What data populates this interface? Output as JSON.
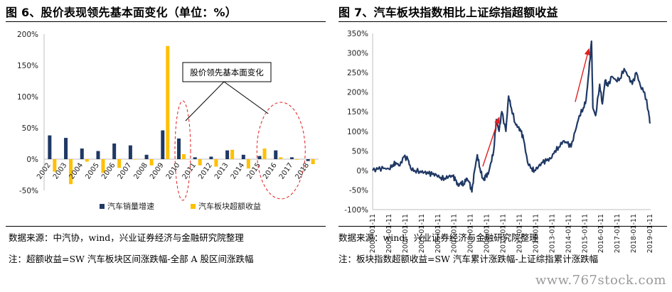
{
  "left": {
    "title": "图 6、股价表现领先基本面变化（单位：%）",
    "source": "数据来源：中汽协，wind，兴业证券经济与金融研究院整理",
    "note": "注：超额收益=SW 汽车板块区间涨跌幅-全部 A 股区间涨跌幅"
  },
  "right": {
    "title": "图 7、汽车板块指数相比上证综指超额收益",
    "source": "数据来源：wind，兴业证券经济与金融研究院整理",
    "note": "注：板块指数超额收益=SW 汽车累计涨跌幅-上证综指累计涨跌幅"
  },
  "watermark": "www.767stock.com",
  "colors": {
    "navy": "#1f3864",
    "gold": "#ffc000",
    "line": "#1f3864",
    "red": "#e02020",
    "axis": "#bfbfbf"
  },
  "chart_data": [
    {
      "type": "bar",
      "title": "",
      "categories": [
        "2002",
        "2003",
        "2004",
        "2005",
        "2006",
        "2007",
        "2008",
        "2009",
        "2010",
        "2011",
        "2012",
        "2013",
        "2014",
        "2015",
        "2016",
        "2017",
        "2018"
      ],
      "series": [
        {
          "name": "汽车销量增速",
          "color": "#1f3864",
          "values": [
            38,
            34,
            17,
            13,
            25,
            22,
            7,
            46,
            33,
            3,
            4,
            14,
            7,
            5,
            14,
            3,
            -3
          ]
        },
        {
          "name": "汽车板块超额收益",
          "color": "#ffc000",
          "values": [
            -20,
            -40,
            -4,
            -22,
            -14,
            0,
            -10,
            181,
            8,
            -10,
            -12,
            15,
            -15,
            17,
            3,
            -1,
            -8
          ]
        }
      ],
      "ylim": [
        -50,
        200
      ],
      "yticks": [
        "-50%",
        "0%",
        "50%",
        "100%",
        "150%",
        "200%"
      ],
      "ytick_values": [
        -50,
        0,
        50,
        100,
        150,
        200
      ],
      "annotation": "股价领先基本面变化",
      "legend_position": "bottom"
    },
    {
      "type": "line",
      "title": "",
      "ylim": [
        -100,
        350
      ],
      "yticks": [
        "-100%",
        "-50%",
        "0%",
        "50%",
        "100%",
        "150%",
        "200%",
        "250%",
        "300%",
        "350%"
      ],
      "ytick_values": [
        -100,
        -50,
        0,
        50,
        100,
        150,
        200,
        250,
        300,
        350
      ],
      "xticks": [
        "2002-01-11",
        "2003-01-11",
        "2004-01-11",
        "2005-01-11",
        "2006-01-11",
        "2007-01-11",
        "2008-01-11",
        "2009-01-11",
        "2010-01-11",
        "2011-01-11",
        "2012-01-11",
        "2013-01-11",
        "2014-01-11",
        "2015-01-11",
        "2016-01-11",
        "2017-01-11",
        "2018-01-11",
        "2019-01-11"
      ],
      "series": [
        {
          "color": "#1f3864",
          "x": [
            "2002-01",
            "2002-05",
            "2002-09",
            "2003-01",
            "2003-04",
            "2003-06",
            "2003-09",
            "2003-12",
            "2004-03",
            "2004-05",
            "2004-08",
            "2004-12",
            "2005-03",
            "2005-06",
            "2005-09",
            "2005-12",
            "2006-03",
            "2006-06",
            "2006-09",
            "2006-12",
            "2007-02",
            "2007-04",
            "2007-06",
            "2007-08",
            "2007-10",
            "2007-12",
            "2008-02",
            "2008-04",
            "2008-06",
            "2008-08",
            "2008-10",
            "2008-11",
            "2008-12",
            "2009-02",
            "2009-04",
            "2009-06",
            "2009-08",
            "2009-10",
            "2009-12",
            "2010-03",
            "2010-05",
            "2010-07",
            "2010-10",
            "2010-12",
            "2011-02",
            "2011-04",
            "2011-07",
            "2011-10",
            "2011-12",
            "2012-03",
            "2012-06",
            "2012-09",
            "2012-12",
            "2013-03",
            "2013-06",
            "2013-09",
            "2013-12",
            "2014-03",
            "2014-06",
            "2014-09",
            "2014-12",
            "2015-02",
            "2015-04",
            "2015-06",
            "2015-07",
            "2015-09",
            "2015-12",
            "2016-02",
            "2016-04",
            "2016-06",
            "2016-09",
            "2016-12",
            "2017-03",
            "2017-06",
            "2017-09",
            "2017-12",
            "2018-03",
            "2018-06",
            "2018-09",
            "2018-12",
            "2019-01"
          ],
          "values": [
            0,
            3,
            5,
            4,
            15,
            20,
            12,
            35,
            28,
            5,
            0,
            -2,
            -5,
            -8,
            -10,
            -12,
            -18,
            -20,
            -15,
            -15,
            -25,
            -40,
            -30,
            -35,
            -20,
            -30,
            -55,
            0,
            40,
            5,
            -20,
            -25,
            -15,
            -10,
            20,
            50,
            130,
            100,
            150,
            100,
            190,
            160,
            120,
            110,
            100,
            80,
            20,
            5,
            0,
            10,
            20,
            25,
            30,
            50,
            60,
            75,
            70,
            60,
            100,
            140,
            160,
            180,
            250,
            330,
            160,
            140,
            220,
            170,
            230,
            215,
            240,
            230,
            235,
            260,
            240,
            220,
            250,
            215,
            200,
            150,
            120
          ]
        }
      ],
      "annotations": [
        "arrow-2009",
        "arrow-2014"
      ],
      "legend_position": "none"
    }
  ],
  "left_legend": [
    "汽车销量增速",
    "汽车板块超额收益"
  ]
}
